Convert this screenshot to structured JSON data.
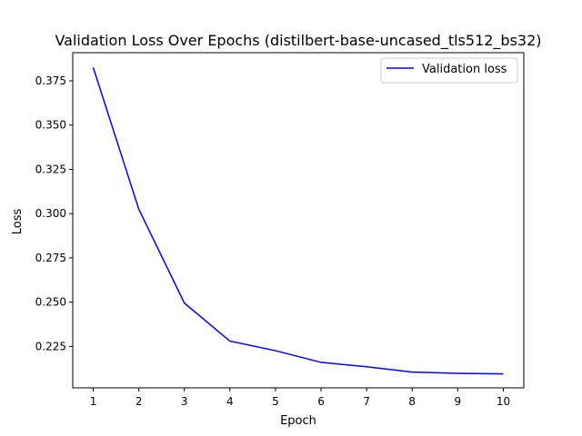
{
  "chart_data": {
    "type": "line",
    "title": "Validation Loss Over Epochs (distilbert-base-uncased_tls512_bs32)",
    "xlabel": "Epoch",
    "ylabel": "Loss",
    "x": [
      1,
      2,
      3,
      4,
      5,
      6,
      7,
      8,
      9,
      10
    ],
    "xticks": [
      "1",
      "2",
      "3",
      "4",
      "5",
      "6",
      "7",
      "8",
      "9",
      "10"
    ],
    "yticks": [
      "0.225",
      "0.250",
      "0.275",
      "0.300",
      "0.325",
      "0.350",
      "0.375"
    ],
    "ytick_values": [
      0.225,
      0.25,
      0.275,
      0.3,
      0.325,
      0.35,
      0.375
    ],
    "xlim": [
      0.55,
      10.45
    ],
    "ylim": [
      0.2016,
      0.3909
    ],
    "series": [
      {
        "name": "Validation loss",
        "color": "#0000ff",
        "values": [
          0.3825,
          0.3025,
          0.2495,
          0.228,
          0.2226,
          0.216,
          0.2135,
          0.2105,
          0.2098,
          0.2095
        ]
      }
    ],
    "legend": "top-right",
    "grid": false
  }
}
